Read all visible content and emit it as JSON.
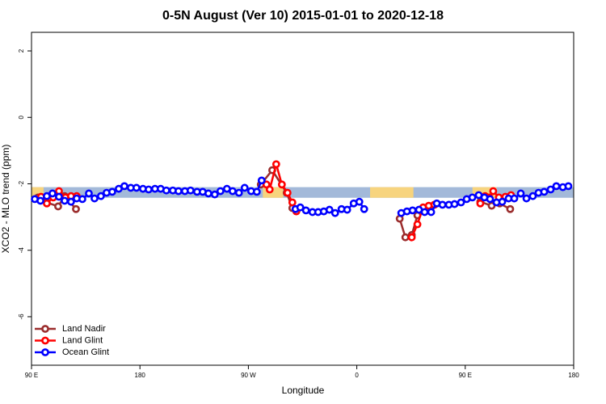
{
  "chart_data": {
    "type": "line",
    "title": "0-5N August (Ver 10)   2015-01-01 to 2020-12-18",
    "x_label": "Longitude",
    "y_label": "XCO2 - MLO trend (ppm)",
    "xlim": [
      90,
      540
    ],
    "xticks": [
      {
        "value": 90,
        "label": "90 E"
      },
      180,
      {
        "value": 270,
        "label": "90 W"
      },
      {
        "value": 360,
        "label": "0"
      },
      {
        "value": 450,
        "label": "90 E"
      },
      {
        "value": 540,
        "label": "180"
      }
    ],
    "ylim": [
      -7.46,
      2.56
    ],
    "yticks": [
      2,
      0,
      -2,
      -4,
      -6
    ],
    "legend": "bottom-left",
    "background_band": {
      "low": -2.42,
      "high": -2.1,
      "color": "#a3b9d9",
      "land_spans": [
        [
          90,
          100
        ],
        [
          282,
          299
        ],
        [
          371,
          407
        ],
        [
          456,
          476
        ]
      ],
      "land_color": "#f7d47e"
    },
    "series": [
      {
        "name": "Land Nadir",
        "color": "#9b2d2d",
        "x": [
          95.4,
          102.7,
          112.1,
          117.5,
          126.9,
          null,
          280.3,
          289.8,
          301.8,
          306.5,
          null,
          395.6,
          400.3,
          405.6,
          410.3,
          415.0,
          419.7,
          424.4,
          null,
          462.5,
          471.9,
          478.6,
          487.3
        ],
        "values": [
          -2.41,
          -2.56,
          -2.68,
          -2.37,
          -2.76,
          null,
          -2.02,
          -1.59,
          -2.27,
          -2.73,
          null,
          -3.05,
          -3.61,
          -3.54,
          -2.95,
          -2.8,
          -2.68,
          -2.63,
          null,
          -2.54,
          -2.66,
          -2.59,
          -2.76
        ]
      },
      {
        "name": "Land Glint",
        "color": "#ff0000",
        "x": [
          97.9,
          102.7,
          108.0,
          112.8,
          118.1,
          122.8,
          127.5,
          null,
          285.0,
          287.7,
          293.1,
          297.8,
          302.5,
          306.5,
          309.8,
          null,
          405.6,
          410.3,
          415.0,
          419.7,
          424.4,
          null,
          462.5,
          466.5,
          469.9,
          473.2,
          477.9,
          483.3,
          488.0
        ],
        "values": [
          -2.39,
          -2.59,
          -2.41,
          -2.22,
          -2.41,
          -2.37,
          -2.37,
          null,
          -2.02,
          -2.17,
          -1.41,
          -2.02,
          -2.27,
          -2.56,
          -2.83,
          null,
          -3.61,
          -3.22,
          -2.71,
          -2.66,
          -2.63,
          null,
          -2.59,
          -2.37,
          -2.41,
          -2.22,
          -2.41,
          -2.39,
          -2.34
        ]
      },
      {
        "name": "Ocean Glint",
        "color": "#0000ff",
        "x": [
          92.7,
          97.4,
          102.7,
          107.4,
          112.8,
          117.5,
          122.8,
          127.5,
          132.2,
          137.6,
          142.3,
          147.6,
          152.3,
          157.0,
          162.4,
          167.1,
          172.4,
          177.1,
          182.5,
          187.2,
          192.5,
          197.2,
          201.9,
          207.3,
          212.0,
          217.3,
          222.0,
          227.4,
          232.1,
          236.8,
          242.1,
          246.8,
          252.2,
          256.9,
          262.2,
          266.9,
          272.3,
          277.0,
          281.0,
          null,
          309.1,
          313.1,
          317.8,
          323.2,
          327.9,
          332.6,
          337.3,
          342.0,
          347.3,
          352.0,
          357.4,
          362.1,
          366.1,
          null,
          396.9,
          401.6,
          406.3,
          411.6,
          416.3,
          421.7,
          426.4,
          431.1,
          436.4,
          441.1,
          446.5,
          451.2,
          455.9,
          461.2,
          465.9,
          470.6,
          476.0,
          480.7,
          486.0,
          490.7,
          496.1,
          500.8,
          506.1,
          510.8,
          515.5,
          520.9,
          525.6,
          531.0,
          535.6
        ],
        "values": [
          -2.46,
          -2.51,
          -2.37,
          -2.29,
          -2.39,
          -2.51,
          -2.54,
          -2.44,
          -2.46,
          -2.29,
          -2.44,
          -2.37,
          -2.27,
          -2.24,
          -2.15,
          -2.07,
          -2.12,
          -2.12,
          -2.15,
          -2.17,
          -2.15,
          -2.15,
          -2.2,
          -2.2,
          -2.22,
          -2.22,
          -2.2,
          -2.24,
          -2.24,
          -2.29,
          -2.32,
          -2.22,
          -2.15,
          -2.22,
          -2.27,
          -2.12,
          -2.22,
          -2.24,
          -1.9,
          null,
          -2.76,
          -2.71,
          -2.8,
          -2.85,
          -2.85,
          -2.83,
          -2.78,
          -2.88,
          -2.76,
          -2.78,
          -2.59,
          -2.54,
          -2.76,
          null,
          -2.88,
          -2.83,
          -2.8,
          -2.78,
          -2.85,
          -2.85,
          -2.59,
          -2.63,
          -2.63,
          -2.61,
          -2.56,
          -2.46,
          -2.41,
          -2.34,
          -2.41,
          -2.46,
          -2.56,
          -2.54,
          -2.44,
          -2.44,
          -2.29,
          -2.44,
          -2.37,
          -2.27,
          -2.24,
          -2.17,
          -2.07,
          -2.1,
          -2.07
        ]
      }
    ]
  }
}
